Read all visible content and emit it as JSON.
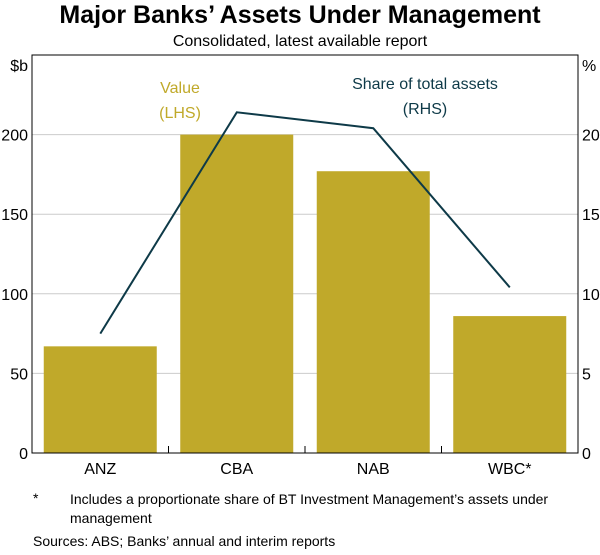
{
  "title": "Major Banks’ Assets Under Management",
  "subtitle": "Consolidated, latest available report",
  "colors": {
    "bar": "#C0A92A",
    "line": "#0E3A48",
    "value_label": "#C0A92A",
    "share_label": "#0E3A48"
  },
  "chart_data": {
    "type": "bar",
    "categories": [
      "ANZ",
      "CBA",
      "NAB",
      "WBC*"
    ],
    "series": [
      {
        "name": "Value",
        "axis": "left",
        "type": "bar",
        "values": [
          67,
          200,
          177,
          86
        ]
      },
      {
        "name": "Share of total assets",
        "axis": "right",
        "type": "line",
        "values": [
          7.5,
          21.4,
          20.4,
          10.4
        ]
      }
    ],
    "left_axis": {
      "unit": "$b",
      "ylim": [
        0,
        250
      ],
      "ticks": [
        "0",
        "50",
        "100",
        "150",
        "200"
      ]
    },
    "right_axis": {
      "unit": "%",
      "ylim": [
        0,
        25
      ],
      "ticks": [
        "0",
        "5",
        "10",
        "15",
        "20"
      ]
    },
    "annotations": {
      "value_label": "Value",
      "value_sub": "(LHS)",
      "share_label": "Share of total assets",
      "share_sub": "(RHS)"
    }
  },
  "footnote": {
    "mark": "*",
    "text": "Includes a proportionate share of BT Investment Management’s assets under management"
  },
  "sources": "Sources:   ABS; Banks’ annual and interim reports"
}
